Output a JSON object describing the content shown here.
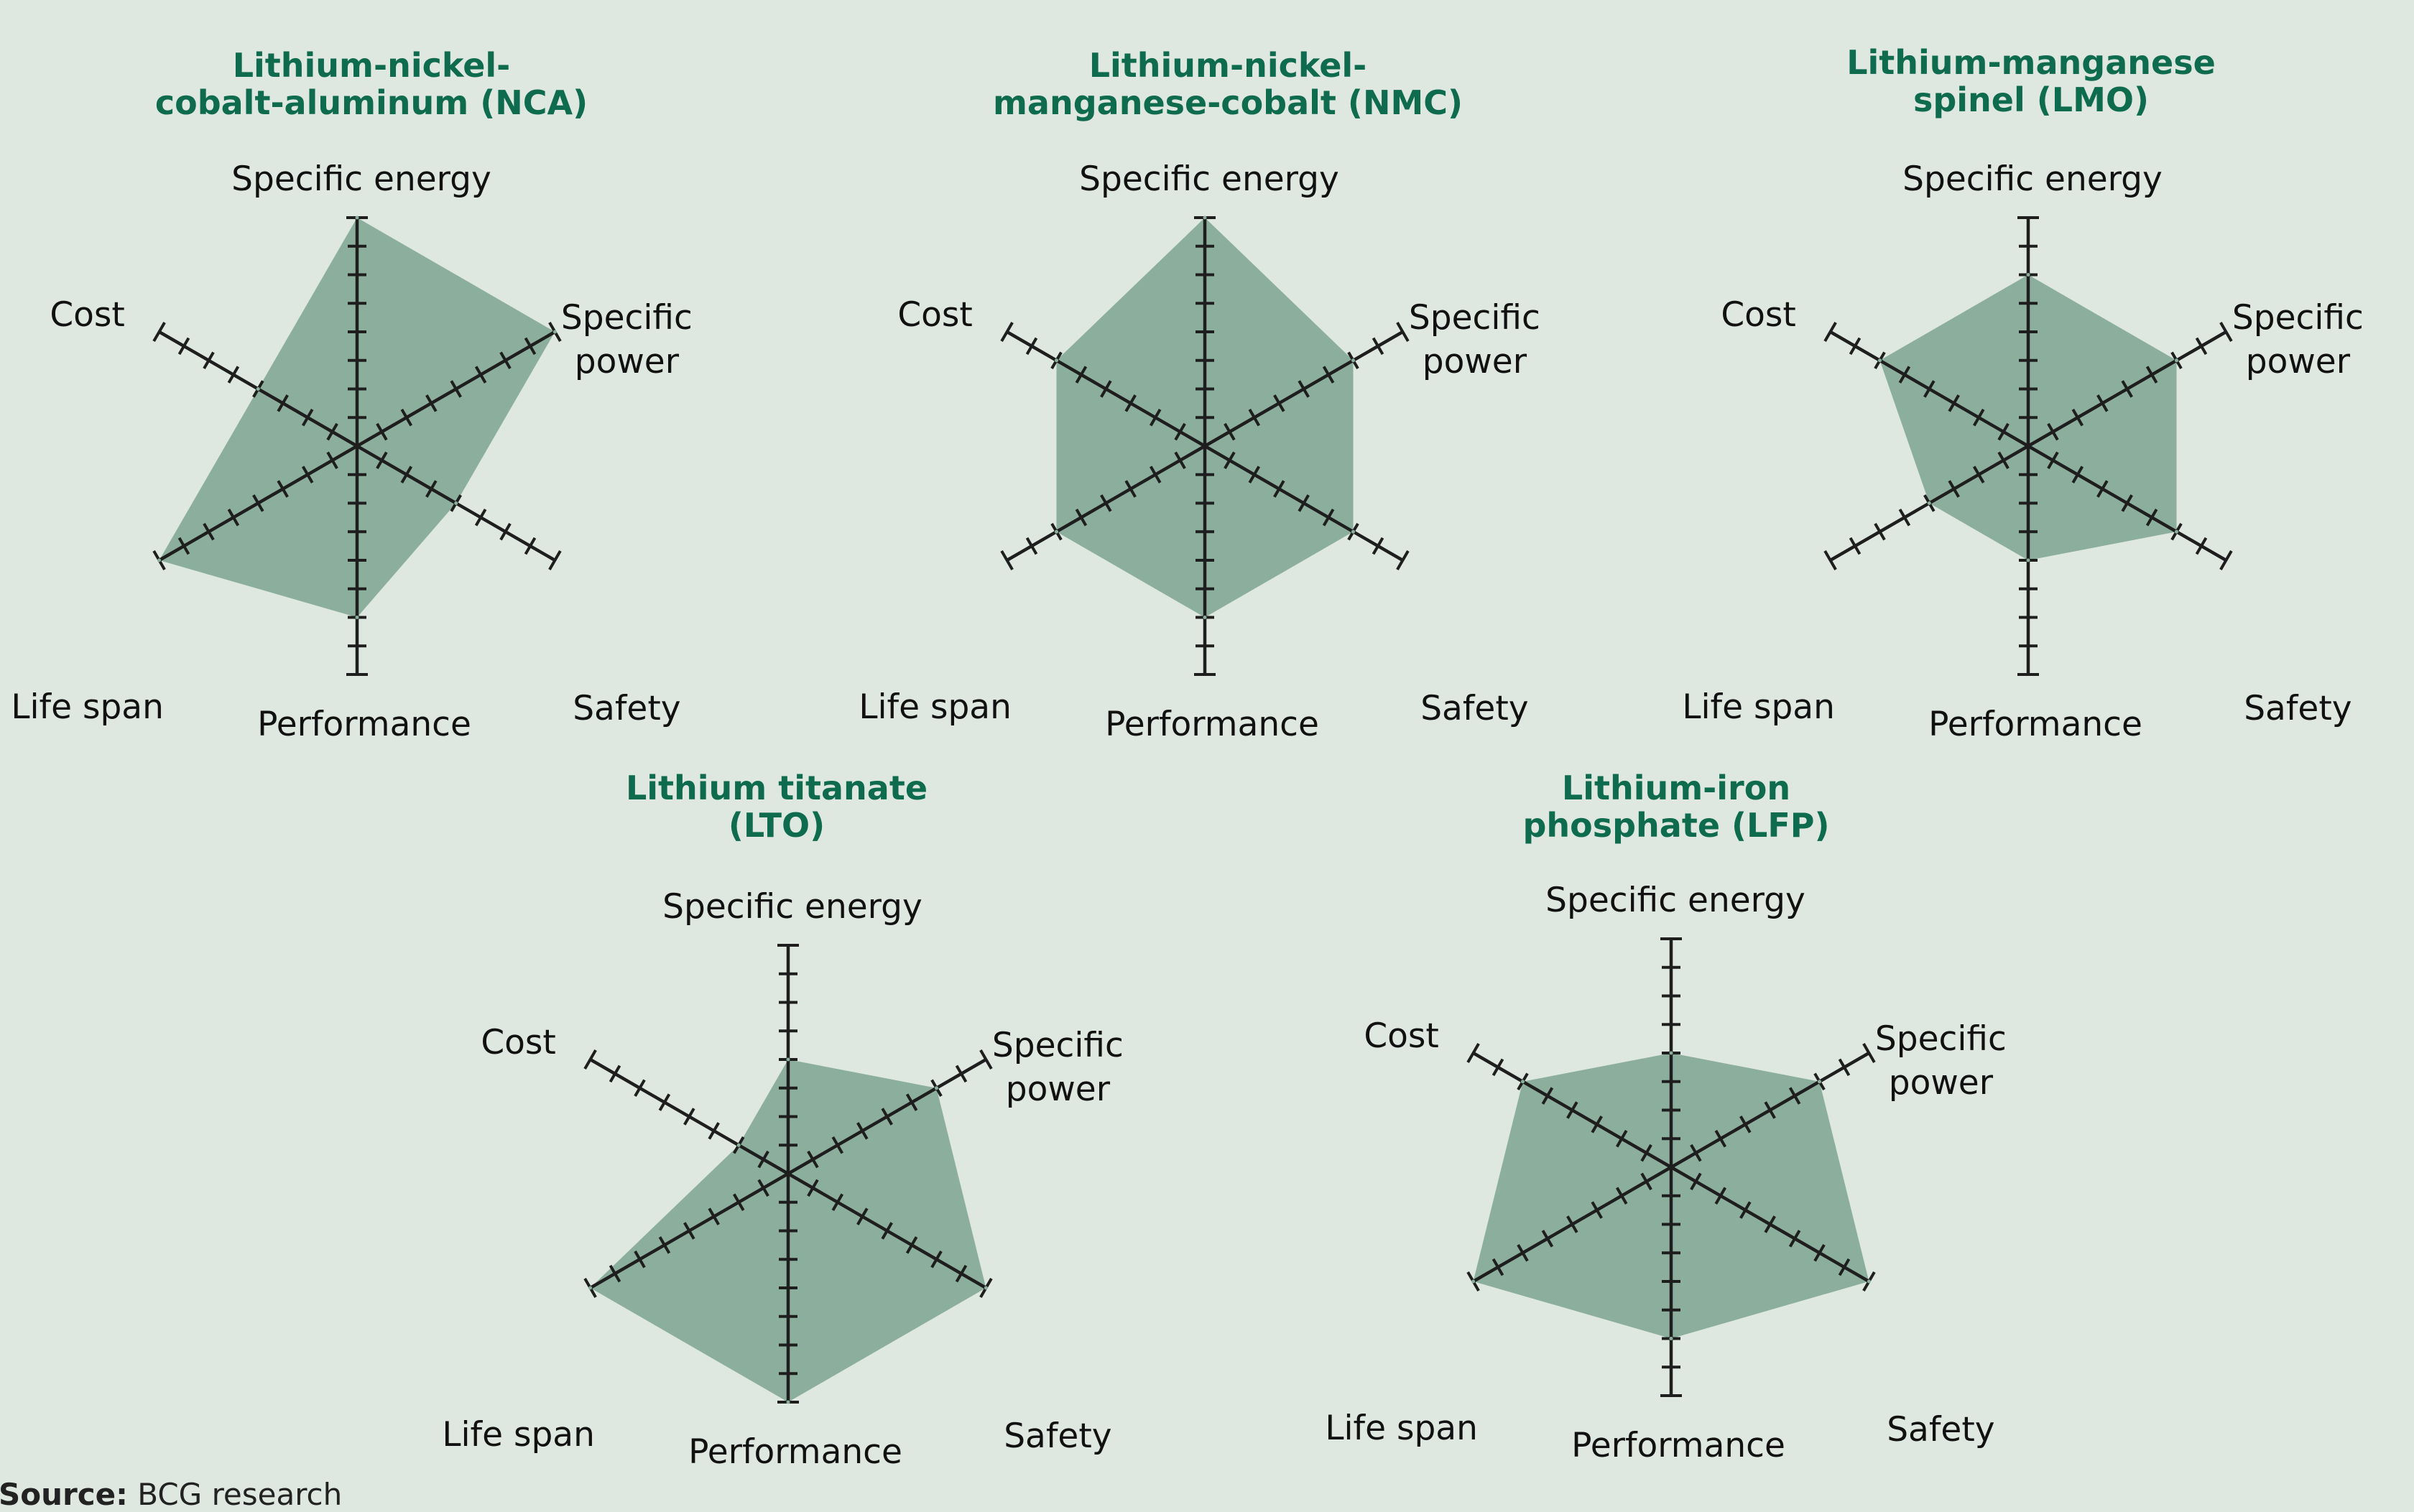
{
  "colors": {
    "background": "#dee8e0",
    "title": "#0f6b4e",
    "fill": "#8cae9d",
    "axis": "#1e1e1e",
    "label": "#111111"
  },
  "source": {
    "label": "Source:",
    "text": "BCG research"
  },
  "chart_data": [
    {
      "type": "radar",
      "title_lines": [
        "Lithium-nickel-",
        "cobalt-aluminum (NCA)"
      ],
      "axes": [
        "Specific energy",
        "Specific power",
        "Safety",
        "Performance",
        "Life span",
        "Cost"
      ],
      "axis_label_lines": [
        [
          "Specific energy"
        ],
        [
          "Specific",
          "power"
        ],
        [
          "Safety"
        ],
        [
          "Performance"
        ],
        [
          "Life span"
        ],
        [
          "Cost"
        ]
      ],
      "scale_max": 4,
      "values": [
        4,
        4,
        2,
        3,
        4,
        2
      ]
    },
    {
      "type": "radar",
      "title_lines": [
        "Lithium-nickel-",
        "manganese-cobalt (NMC)"
      ],
      "axes": [
        "Specific energy",
        "Specific power",
        "Safety",
        "Performance",
        "Life span",
        "Cost"
      ],
      "axis_label_lines": [
        [
          "Specific energy"
        ],
        [
          "Specific",
          "power"
        ],
        [
          "Safety"
        ],
        [
          "Performance"
        ],
        [
          "Life span"
        ],
        [
          "Cost"
        ]
      ],
      "scale_max": 4,
      "values": [
        4,
        3,
        3,
        3,
        3,
        3
      ]
    },
    {
      "type": "radar",
      "title_lines": [
        "Lithium-manganese",
        "spinel (LMO)"
      ],
      "axes": [
        "Specific energy",
        "Specific power",
        "Safety",
        "Performance",
        "Life span",
        "Cost"
      ],
      "axis_label_lines": [
        [
          "Specific energy"
        ],
        [
          "Specific",
          "power"
        ],
        [
          "Safety"
        ],
        [
          "Performance"
        ],
        [
          "Life span"
        ],
        [
          "Cost"
        ]
      ],
      "scale_max": 4,
      "values": [
        3,
        3,
        3,
        2,
        2,
        3
      ]
    },
    {
      "type": "radar",
      "title_lines": [
        "Lithium titanate",
        "(LTO)"
      ],
      "axes": [
        "Specific energy",
        "Specific power",
        "Safety",
        "Performance",
        "Life span",
        "Cost"
      ],
      "axis_label_lines": [
        [
          "Specific energy"
        ],
        [
          "Specific",
          "power"
        ],
        [
          "Safety"
        ],
        [
          "Performance"
        ],
        [
          "Life span"
        ],
        [
          "Cost"
        ]
      ],
      "scale_max": 4,
      "values": [
        2,
        3,
        4,
        4,
        4,
        1
      ]
    },
    {
      "type": "radar",
      "title_lines": [
        "Lithium-iron",
        "phosphate (LFP)"
      ],
      "axes": [
        "Specific energy",
        "Specific power",
        "Safety",
        "Performance",
        "Life span",
        "Cost"
      ],
      "axis_label_lines": [
        [
          "Specific energy"
        ],
        [
          "Specific",
          "power"
        ],
        [
          "Safety"
        ],
        [
          "Performance"
        ],
        [
          "Life span"
        ],
        [
          "Cost"
        ]
      ],
      "scale_max": 4,
      "values": [
        2,
        3,
        4,
        3,
        4,
        3
      ]
    }
  ]
}
